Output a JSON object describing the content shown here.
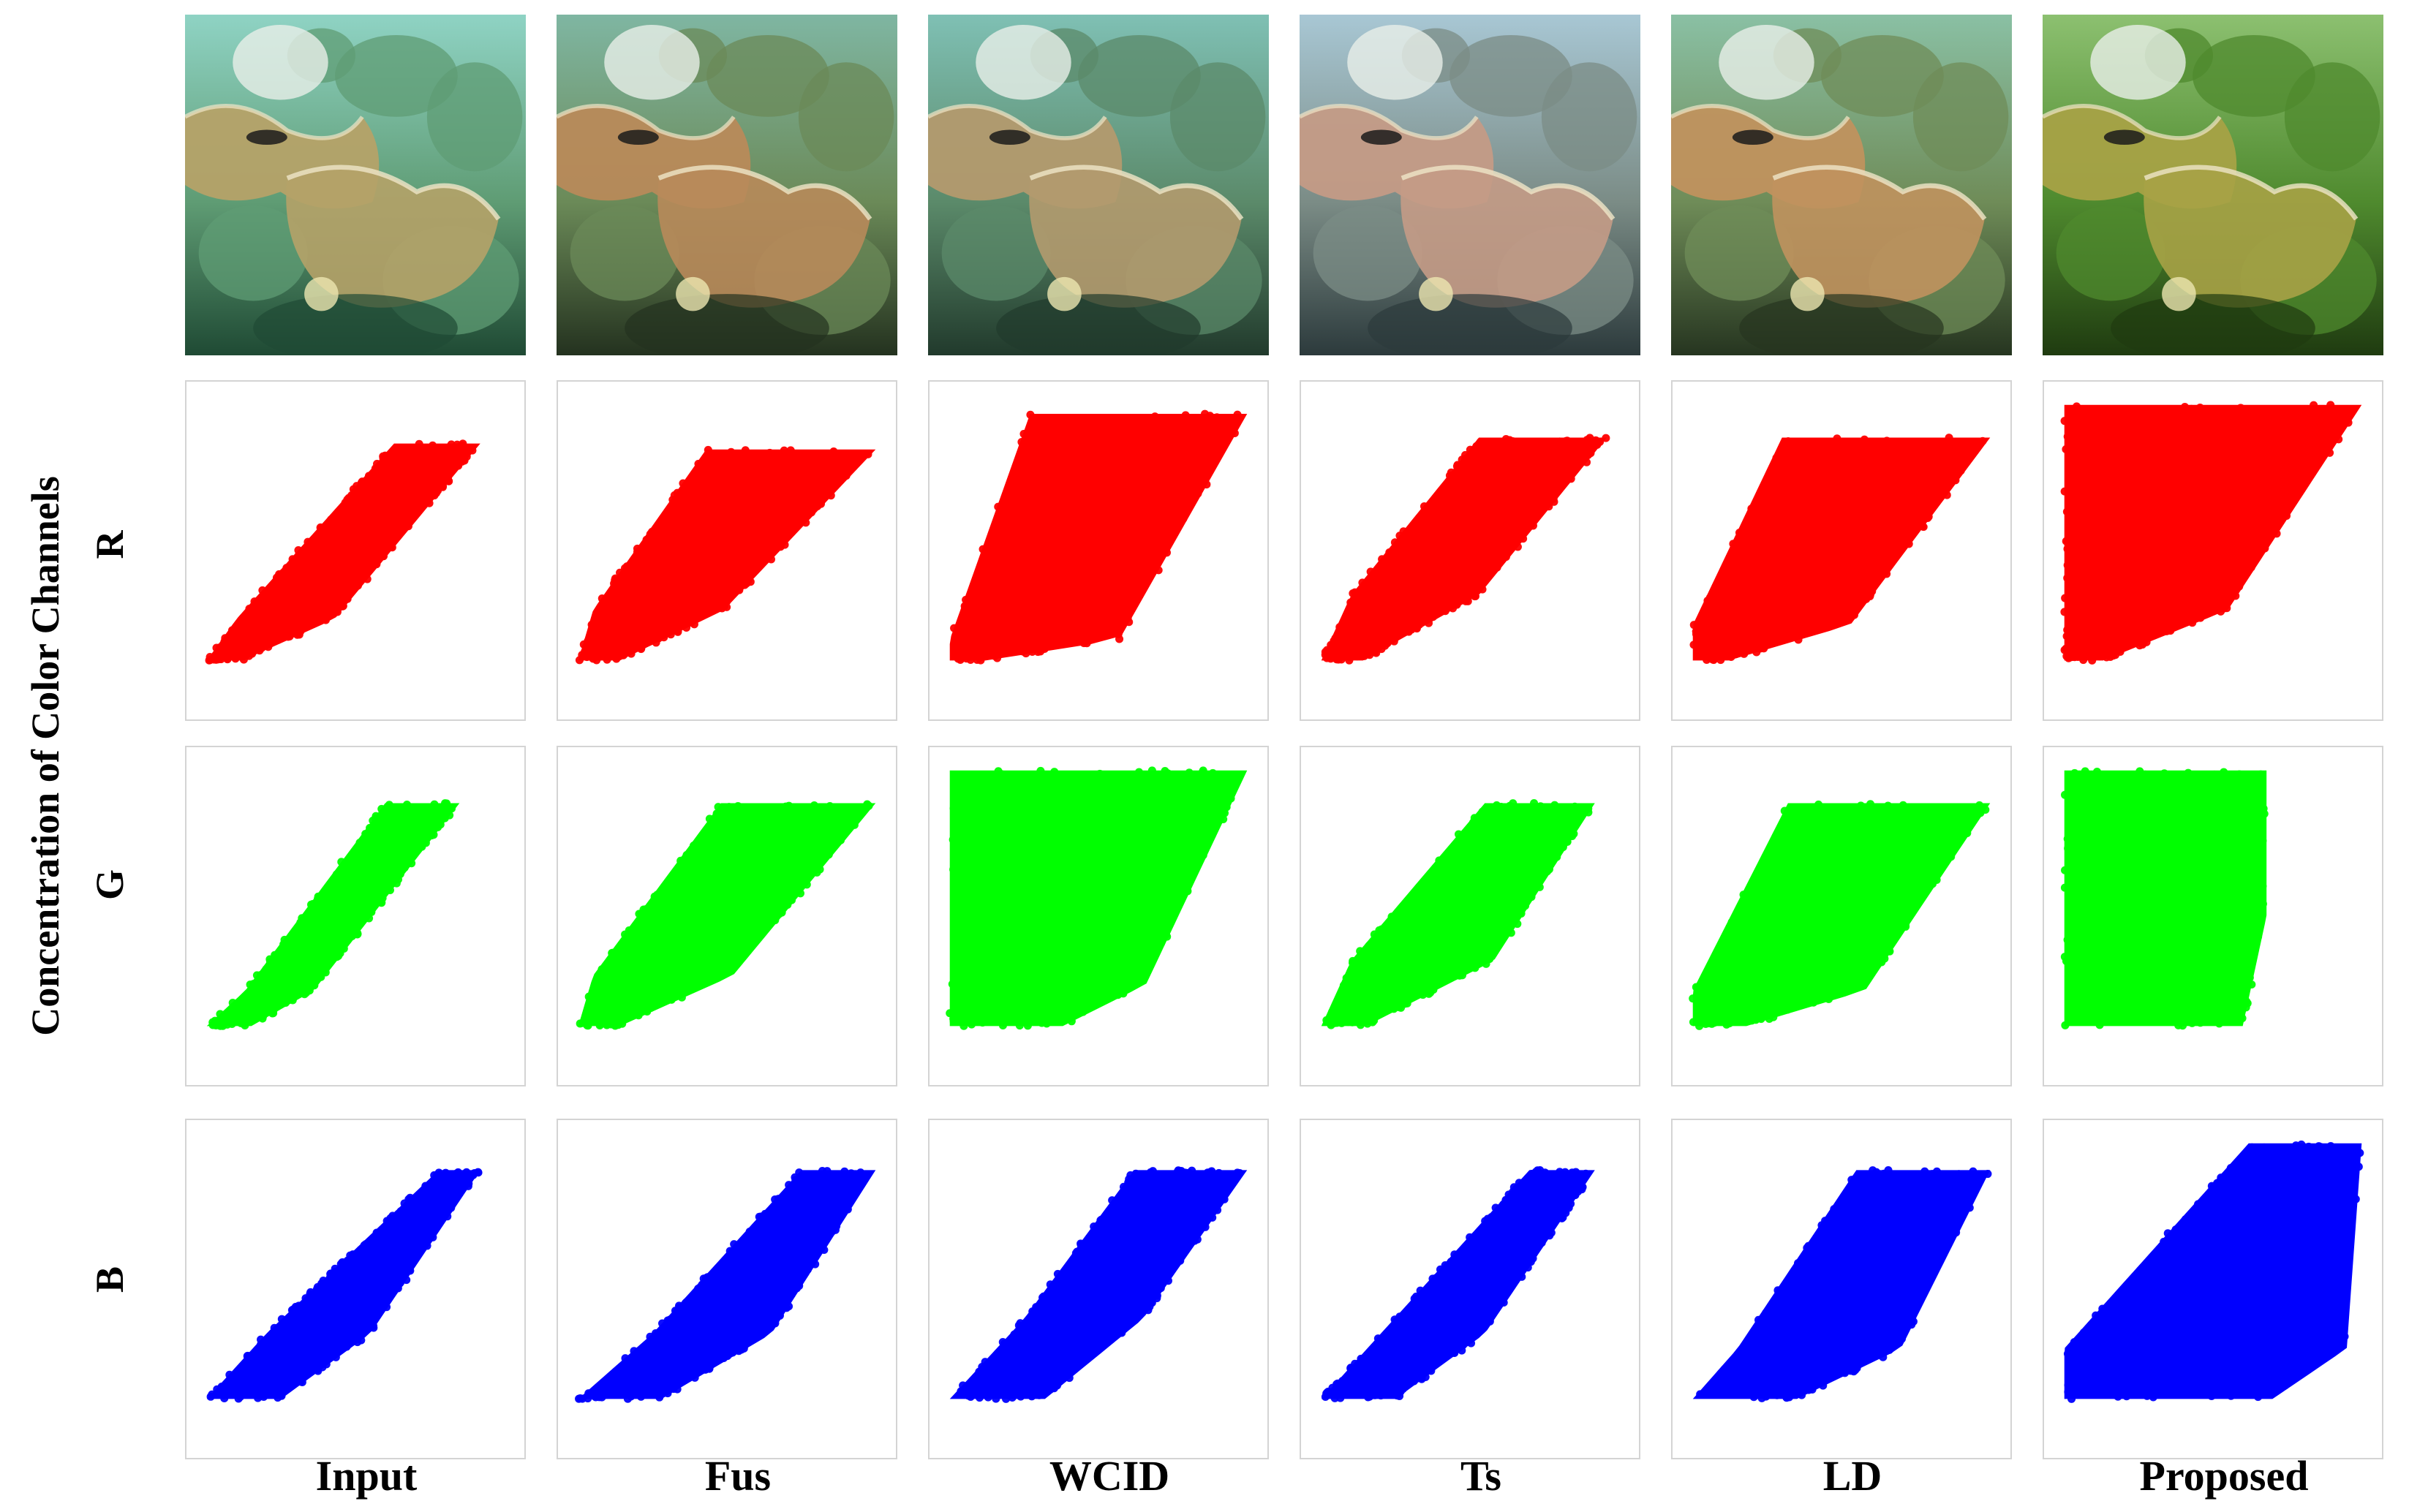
{
  "figure": {
    "y_axis_label": "Concentration of Color Channels",
    "row_labels": [
      "R",
      "G",
      "B"
    ],
    "column_labels": [
      "Input",
      "Fus",
      "WCID",
      "Ts",
      "LD",
      "Proposed"
    ]
  },
  "photos": [
    {
      "method": "Input",
      "tint": "#5f9c74",
      "water": "#8fd3c4",
      "coral": "#b5a268",
      "shade": "#1f4a34"
    },
    {
      "method": "Fus",
      "tint": "#6b8a58",
      "water": "#7fb6a2",
      "coral": "#b88a5a",
      "shade": "#24321f"
    },
    {
      "method": "WCID",
      "tint": "#5b8a6a",
      "water": "#7fc0b4",
      "coral": "#b39a6e",
      "shade": "#213a2c"
    },
    {
      "method": "Ts",
      "tint": "#7b8c86",
      "water": "#a8c7d4",
      "coral": "#c49b86",
      "shade": "#2c3a3c"
    },
    {
      "method": "LD",
      "tint": "#6f8c58",
      "water": "#8ac0a4",
      "coral": "#c0925e",
      "shade": "#263520"
    },
    {
      "method": "Proposed",
      "tint": "#4f8a2e",
      "water": "#8cc070",
      "coral": "#a7a246",
      "shade": "#1f3b10"
    }
  ],
  "chart_data": {
    "type": "scatter",
    "description_of_axes": "",
    "channels": [
      {
        "name": "R",
        "color": "#ff0000"
      },
      {
        "name": "G",
        "color": "#00ff00"
      },
      {
        "name": "B",
        "color": "#0000ff"
      }
    ],
    "methods": [
      "Input",
      "Fus",
      "WCID",
      "Ts",
      "LD",
      "Proposed"
    ],
    "distributions": {
      "R": [
        {
          "method": "Input",
          "band": [
            [
              0.13,
              0.74,
              0.0,
              0.12
            ],
            [
              0.27,
              0.96,
              0.1,
              0.43
            ],
            [
              0.86,
              1.0,
              0.63,
              0.92
            ]
          ]
        },
        {
          "method": "Fus",
          "band": [
            [
              0.13,
              0.55,
              0.0,
              0.14
            ],
            [
              0.3,
              0.8,
              0.05,
              0.49
            ],
            [
              0.84,
              1.0,
              0.43,
              1.0
            ]
          ]
        },
        {
          "method": "WCID",
          "band": [
            [
              0.13,
              0.62,
              0.0,
              0.12
            ],
            [
              0.2,
              1.0,
              0.0,
              0.57
            ],
            [
              0.96,
              1.0,
              0.27,
              1.0
            ]
          ]
        },
        {
          "method": "Ts",
          "band": [
            [
              0.13,
              0.52,
              0.0,
              0.14
            ],
            [
              0.35,
              0.74,
              0.1,
              0.53
            ],
            [
              0.88,
              1.0,
              0.53,
              0.96
            ]
          ]
        },
        {
          "method": "LD",
          "band": [
            [
              0.13,
              0.48,
              0.0,
              0.12
            ],
            [
              0.25,
              0.83,
              0.0,
              0.53
            ],
            [
              0.88,
              1.0,
              0.3,
              1.0
            ]
          ]
        },
        {
          "method": "Proposed",
          "band": [
            [
              0.13,
              0.0,
              0.0,
              0.13
            ],
            [
              0.3,
              0.0,
              0.0,
              0.55
            ],
            [
              0.99,
              0.0,
              0.0,
              1.0
            ]
          ]
        }
      ],
      "G": [
        {
          "method": "Input",
          "band": [
            [
              0.13,
              0.52,
              0.0,
              0.15
            ],
            [
              0.25,
              0.8,
              0.13,
              0.36
            ],
            [
              0.88,
              1.0,
              0.6,
              0.85
            ]
          ]
        },
        {
          "method": "Fus",
          "band": [
            [
              0.13,
              0.45,
              0.0,
              0.14
            ],
            [
              0.3,
              0.76,
              0.05,
              0.52
            ],
            [
              0.88,
              1.0,
              0.48,
              1.0
            ]
          ]
        },
        {
          "method": "WCID",
          "band": [
            [
              0.13,
              0.0,
              0.0,
              0.38
            ],
            [
              0.27,
              0.0,
              0.0,
              0.66
            ],
            [
              0.99,
              0.22,
              0.0,
              1.0
            ]
          ]
        },
        {
          "method": "Ts",
          "band": [
            [
              0.13,
              0.45,
              0.0,
              0.15
            ],
            [
              0.35,
              0.68,
              0.1,
              0.58
            ],
            [
              0.88,
              1.0,
              0.55,
              0.92
            ]
          ]
        },
        {
          "method": "LD",
          "band": [
            [
              0.13,
              0.22,
              0.0,
              0.18
            ],
            [
              0.25,
              0.48,
              0.0,
              0.58
            ],
            [
              0.88,
              1.0,
              0.32,
              1.0
            ]
          ]
        },
        {
          "method": "Proposed",
          "band": [
            [
              0.13,
              0.0,
              0.0,
              0.6
            ],
            [
              0.5,
              0.0,
              0.0,
              0.68
            ],
            [
              0.99,
              0.0,
              0.0,
              0.68
            ]
          ]
        }
      ],
      "B": [
        {
          "method": "Input",
          "band": [
            [
              0.13,
              0.55,
              0.0,
              0.25
            ],
            [
              0.35,
              0.7,
              0.2,
              0.55
            ],
            [
              0.9,
              1.0,
              0.78,
              0.92
            ]
          ]
        },
        {
          "method": "Fus",
          "band": [
            [
              0.13,
              0.45,
              0.0,
              0.28
            ],
            [
              0.35,
              0.68,
              0.25,
              0.65
            ],
            [
              0.9,
              1.0,
              0.75,
              1.0
            ]
          ]
        },
        {
          "method": "WCID",
          "band": [
            [
              0.13,
              0.3,
              0.0,
              0.32
            ],
            [
              0.4,
              0.6,
              0.25,
              0.65
            ],
            [
              0.9,
              1.0,
              0.62,
              1.0
            ]
          ]
        },
        {
          "method": "Ts",
          "band": [
            [
              0.13,
              0.45,
              0.0,
              0.25
            ],
            [
              0.35,
              0.68,
              0.2,
              0.55
            ],
            [
              0.9,
              1.0,
              0.7,
              0.92
            ]
          ]
        },
        {
          "method": "LD",
          "band": [
            [
              0.13,
              0.32,
              0.0,
              0.35
            ],
            [
              0.3,
              0.55,
              0.15,
              0.7
            ],
            [
              0.9,
              1.0,
              0.55,
              1.0
            ]
          ]
        },
        {
          "method": "Proposed",
          "band": [
            [
              0.13,
              0.12,
              0.0,
              0.7
            ],
            [
              0.3,
              0.25,
              0.0,
              0.95
            ],
            [
              0.99,
              1.0,
              0.62,
              1.0
            ]
          ]
        }
      ]
    }
  }
}
